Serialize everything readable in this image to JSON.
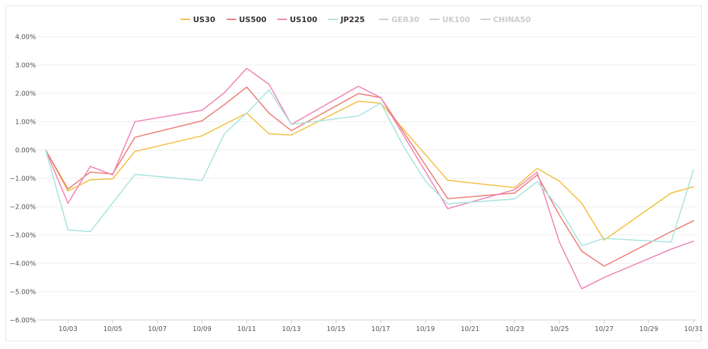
{
  "chart_data": {
    "type": "line",
    "title": "",
    "xlabel": "",
    "ylabel": "",
    "x_ticks": [
      "10/03",
      "10/05",
      "10/07",
      "10/09",
      "10/11",
      "10/13",
      "10/15",
      "10/17",
      "10/19",
      "10/21",
      "10/23",
      "10/25",
      "10/27",
      "10/29",
      "10/31"
    ],
    "y_ticks": [
      "4.00%",
      "3.00%",
      "2.00%",
      "1.00%",
      "0.00%",
      "−1.00%",
      "−2.00%",
      "−3.00%",
      "−4.00%",
      "−5.00%",
      "−6.00%"
    ],
    "ylim": [
      -6,
      4
    ],
    "xlim": [
      "10/02",
      "10/31"
    ],
    "grid": "horizontal",
    "legend_position": "top-center",
    "series": [
      {
        "name": "US30",
        "color": "#f4c042",
        "visible": true,
        "points": [
          [
            "10/02",
            0
          ],
          [
            "10/03",
            -1.45
          ],
          [
            "10/04",
            -1.05
          ],
          [
            "10/05",
            -1.02
          ],
          [
            "10/06",
            -0.05
          ],
          [
            "10/09",
            0.5
          ],
          [
            "10/11",
            1.3
          ],
          [
            "10/12",
            0.57
          ],
          [
            "10/13",
            0.53
          ],
          [
            "10/16",
            1.72
          ],
          [
            "10/17",
            1.65
          ],
          [
            "10/20",
            -1.07
          ],
          [
            "10/23",
            -1.33
          ],
          [
            "10/24",
            -0.65
          ],
          [
            "10/25",
            -1.1
          ],
          [
            "10/26",
            -1.88
          ],
          [
            "10/27",
            -3.18
          ],
          [
            "10/30",
            -1.52
          ],
          [
            "10/31",
            -1.3
          ]
        ]
      },
      {
        "name": "US500",
        "color": "#ed7d75",
        "visible": true,
        "points": [
          [
            "10/02",
            0
          ],
          [
            "10/03",
            -1.38
          ],
          [
            "10/04",
            -0.78
          ],
          [
            "10/05",
            -0.85
          ],
          [
            "10/06",
            0.45
          ],
          [
            "10/09",
            1.03
          ],
          [
            "10/10",
            1.6
          ],
          [
            "10/11",
            2.22
          ],
          [
            "10/12",
            1.3
          ],
          [
            "10/13",
            0.68
          ],
          [
            "10/16",
            1.99
          ],
          [
            "10/17",
            1.85
          ],
          [
            "10/20",
            -1.72
          ],
          [
            "10/23",
            -1.52
          ],
          [
            "10/24",
            -0.88
          ],
          [
            "10/25",
            -2.3
          ],
          [
            "10/26",
            -3.57
          ],
          [
            "10/27",
            -4.1
          ],
          [
            "10/30",
            -2.88
          ],
          [
            "10/31",
            -2.5
          ]
        ]
      },
      {
        "name": "US100",
        "color": "#ef84b6",
        "visible": true,
        "points": [
          [
            "10/02",
            0
          ],
          [
            "10/03",
            -1.88
          ],
          [
            "10/04",
            -0.58
          ],
          [
            "10/05",
            -0.88
          ],
          [
            "10/06",
            1.0
          ],
          [
            "10/09",
            1.4
          ],
          [
            "10/10",
            2.02
          ],
          [
            "10/11",
            2.88
          ],
          [
            "10/12",
            2.32
          ],
          [
            "10/13",
            0.9
          ],
          [
            "10/16",
            2.25
          ],
          [
            "10/17",
            1.85
          ],
          [
            "10/20",
            -2.07
          ],
          [
            "10/23",
            -1.4
          ],
          [
            "10/24",
            -0.78
          ],
          [
            "10/25",
            -3.25
          ],
          [
            "10/26",
            -4.9
          ],
          [
            "10/27",
            -4.5
          ],
          [
            "10/30",
            -3.5
          ],
          [
            "10/31",
            -3.22
          ]
        ]
      },
      {
        "name": "JP225",
        "color": "#a9e4e0",
        "visible": true,
        "points": [
          [
            "10/02",
            0
          ],
          [
            "10/03",
            -2.82
          ],
          [
            "10/04",
            -2.88
          ],
          [
            "10/06",
            -0.86
          ],
          [
            "10/09",
            -1.08
          ],
          [
            "10/10",
            0.57
          ],
          [
            "10/11",
            1.3
          ],
          [
            "10/12",
            2.12
          ],
          [
            "10/13",
            0.9
          ],
          [
            "10/16",
            1.2
          ],
          [
            "10/17",
            1.65
          ],
          [
            "10/18",
            0.15
          ],
          [
            "10/19",
            -1.1
          ],
          [
            "10/20",
            -1.9
          ],
          [
            "10/23",
            -1.73
          ],
          [
            "10/24",
            -1.12
          ],
          [
            "10/25",
            -2.05
          ],
          [
            "10/26",
            -3.38
          ],
          [
            "10/27",
            -3.12
          ],
          [
            "10/30",
            -3.25
          ],
          [
            "10/31",
            -0.7
          ]
        ]
      },
      {
        "name": "GER30",
        "color": "#cccccc",
        "visible": false,
        "points": []
      },
      {
        "name": "UK100",
        "color": "#cccccc",
        "visible": false,
        "points": []
      },
      {
        "name": "CHINA50",
        "color": "#cccccc",
        "visible": false,
        "points": []
      }
    ]
  }
}
